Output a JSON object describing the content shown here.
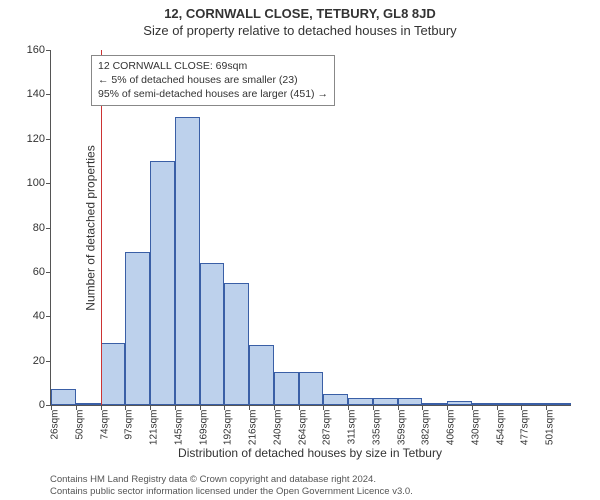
{
  "title_main": "12, CORNWALL CLOSE, TETBURY, GL8 8JD",
  "title_sub": "Size of property relative to detached houses in Tetbury",
  "y_axis": {
    "label": "Number of detached properties",
    "min": 0,
    "max": 160,
    "ticks": [
      0,
      20,
      40,
      60,
      80,
      100,
      120,
      140,
      160
    ]
  },
  "x_axis": {
    "label": "Distribution of detached houses by size in Tetbury",
    "tick_labels": [
      "26sqm",
      "50sqm",
      "74sqm",
      "97sqm",
      "121sqm",
      "145sqm",
      "169sqm",
      "192sqm",
      "216sqm",
      "240sqm",
      "264sqm",
      "287sqm",
      "311sqm",
      "335sqm",
      "359sqm",
      "382sqm",
      "406sqm",
      "430sqm",
      "454sqm",
      "477sqm",
      "501sqm"
    ]
  },
  "histogram": {
    "type": "histogram",
    "bar_fill": "#bdd1ec",
    "bar_border": "#3a5fa6",
    "values": [
      7,
      0,
      28,
      69,
      110,
      130,
      64,
      55,
      27,
      15,
      15,
      5,
      3,
      3,
      3,
      1,
      2,
      1,
      1,
      1,
      1
    ]
  },
  "reference_line": {
    "position_index": 2,
    "color": "#cc3333"
  },
  "info_box": {
    "line1": "12 CORNWALL CLOSE: 69sqm",
    "line2": "← 5% of detached houses are smaller (23)",
    "line3": "95% of semi-detached houses are larger (451) →"
  },
  "attribution": {
    "line1": "Contains HM Land Registry data © Crown copyright and database right 2024.",
    "line2": "Contains public sector information licensed under the Open Government Licence v3.0."
  },
  "colors": {
    "background": "#ffffff",
    "axis": "#555555",
    "text": "#333333"
  }
}
